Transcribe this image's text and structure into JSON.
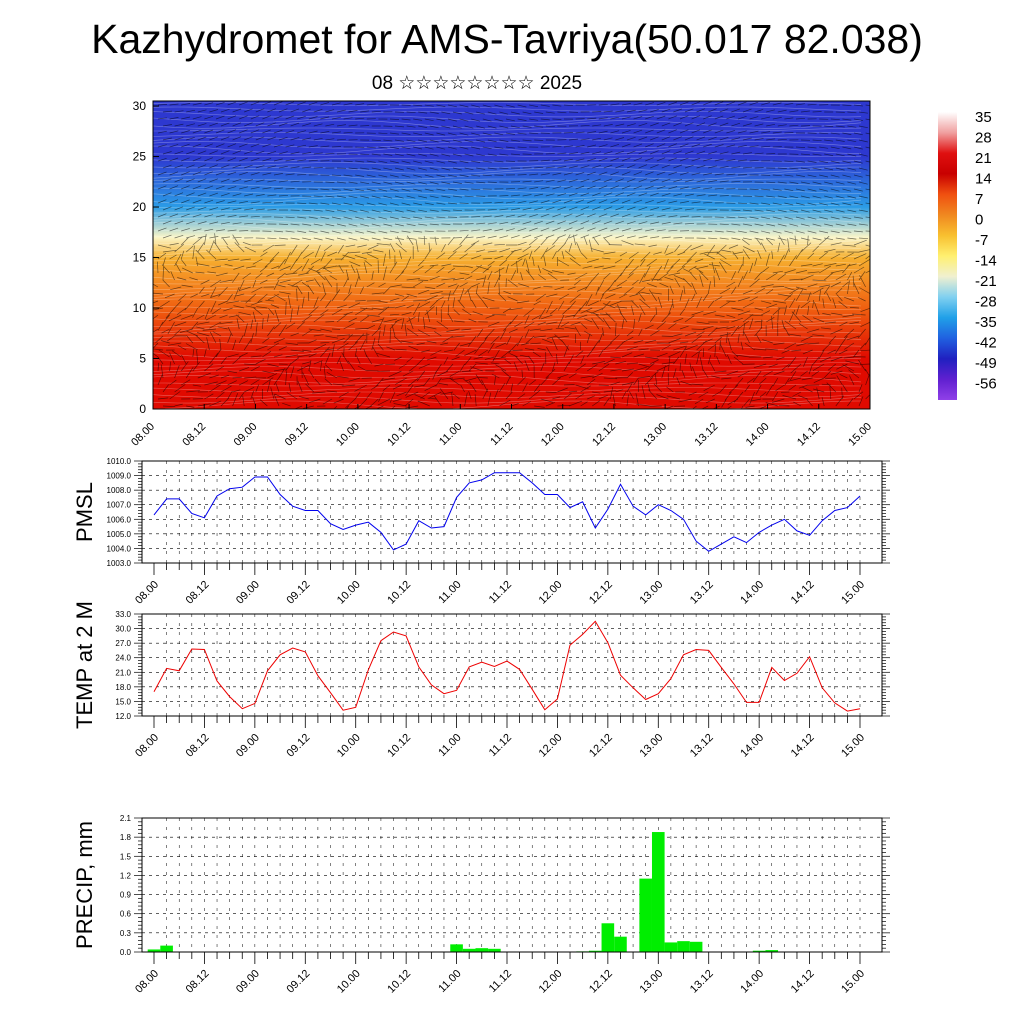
{
  "title": "Kazhydromet for AMS-Tavriya(50.017 82.038)",
  "subtitle": "08 ☆☆☆☆☆☆☆☆ 2025",
  "chart_data": [
    {
      "type": "heatmap",
      "name": "temperature-wind-section",
      "x_ticks": [
        "08.00",
        "08.12",
        "09.00",
        "09.12",
        "10.00",
        "10.12",
        "11.00",
        "11.12",
        "12.00",
        "12.12",
        "13.00",
        "13.12",
        "14.00",
        "14.12",
        "15.00"
      ],
      "y_ticks": [
        "0",
        "5",
        "10",
        "15",
        "20",
        "25",
        "30"
      ],
      "ylim": [
        0,
        30.5
      ],
      "colorbar_labels": [
        "35",
        "28",
        "21",
        "14",
        "7",
        "0",
        "-7",
        "-14",
        "-21",
        "-28",
        "-35",
        "-42",
        "-49",
        "-56"
      ],
      "colorbar_colors": [
        "#ffffff",
        "#f0a0a0",
        "#e01010",
        "#c80000",
        "#f05010",
        "#f08820",
        "#f8c030",
        "#fff070",
        "#f0f0d0",
        "#80d0f0",
        "#20a0e8",
        "#2060e0",
        "#2020c0",
        "#6020d0",
        "#9040e8"
      ],
      "levels": [
        {
          "height": 0,
          "temp": 30
        },
        {
          "height": 5,
          "temp": 24
        },
        {
          "height": 10,
          "temp": 12
        },
        {
          "height": 15,
          "temp": 0
        },
        {
          "height": 17,
          "temp": -10
        },
        {
          "height": 20,
          "temp": -30
        },
        {
          "height": 25,
          "temp": -50
        },
        {
          "height": 30.5,
          "temp": -45
        }
      ]
    },
    {
      "type": "line",
      "ylabel": "PMSL",
      "x_ticks": [
        "08.00",
        "08.12",
        "09.00",
        "09.12",
        "10.00",
        "10.12",
        "11.00",
        "11.12",
        "12.00",
        "12.12",
        "13.00",
        "13.12",
        "14.00",
        "14.12",
        "15.00"
      ],
      "y_ticks": [
        "1003.0",
        "1004.0",
        "1005.0",
        "1006.0",
        "1007.0",
        "1008.0",
        "1009.0",
        "1010.0"
      ],
      "ylim": [
        1003,
        1010
      ],
      "line_color": "#0000ee",
      "series": [
        {
          "values": [
            1006.3,
            1007.4,
            1007.4,
            1006.4,
            1006.1,
            1007.6,
            1008.1,
            1008.2,
            1008.9,
            1008.9,
            1007.7,
            1006.9,
            1006.6,
            1006.6,
            1005.7,
            1005.3,
            1005.6,
            1005.8,
            1005.1,
            1003.9,
            1004.3,
            1005.9,
            1005.4,
            1005.5,
            1007.5,
            1008.5,
            1008.7,
            1009.2,
            1009.2,
            1009.2,
            1008.5,
            1007.7,
            1007.7,
            1006.8,
            1007.2,
            1005.4,
            1006.7,
            1008.4,
            1006.9,
            1006.3,
            1007.0,
            1006.6,
            1006.0,
            1004.5,
            1003.8,
            1004.3,
            1004.8,
            1004.4,
            1005.1,
            1005.6,
            1006.0,
            1005.2,
            1004.9,
            1005.9,
            1006.6,
            1006.8,
            1007.6
          ]
        }
      ]
    },
    {
      "type": "line",
      "ylabel": "TEMP at 2 M",
      "x_ticks": [
        "08.00",
        "08.12",
        "09.00",
        "09.12",
        "10.00",
        "10.12",
        "11.00",
        "11.12",
        "12.00",
        "12.12",
        "13.00",
        "13.12",
        "14.00",
        "14.12",
        "15.00"
      ],
      "y_ticks": [
        "12.0",
        "15.0",
        "18.0",
        "21.0",
        "24.0",
        "27.0",
        "30.0",
        "33.0"
      ],
      "ylim": [
        12,
        33
      ],
      "line_color": "#ee0000",
      "series": [
        {
          "values": [
            17.0,
            21.8,
            21.3,
            25.8,
            25.7,
            19.2,
            16.0,
            13.5,
            14.6,
            21.3,
            24.6,
            26.0,
            25.2,
            20.3,
            16.8,
            13.2,
            13.8,
            21.5,
            27.5,
            29.3,
            28.5,
            22.1,
            18.4,
            16.6,
            17.3,
            22.1,
            23.1,
            22.2,
            23.3,
            21.6,
            17.5,
            13.3,
            15.5,
            26.6,
            28.8,
            31.5,
            27.1,
            20.4,
            17.8,
            15.4,
            16.6,
            19.7,
            24.6,
            25.7,
            25.5,
            22.0,
            18.6,
            14.8,
            14.8,
            22.0,
            19.3,
            20.8,
            24.2,
            17.8,
            14.7,
            13.0,
            13.5
          ]
        }
      ]
    },
    {
      "type": "bar",
      "ylabel": "PRECIP, mm",
      "x_ticks": [
        "08.00",
        "08.12",
        "09.00",
        "09.12",
        "10.00",
        "10.12",
        "11.00",
        "11.12",
        "12.00",
        "12.12",
        "13.00",
        "13.12",
        "14.00",
        "14.12",
        "15.00"
      ],
      "y_ticks": [
        "0.0",
        "0.3",
        "0.6",
        "0.9",
        "1.2",
        "1.5",
        "1.8",
        "2.1"
      ],
      "ylim": [
        0,
        2.1
      ],
      "bar_color": "#00ee00",
      "series": [
        {
          "values": [
            0.04,
            0.1,
            0,
            0,
            0,
            0,
            0,
            0,
            0,
            0,
            0,
            0,
            0,
            0,
            0,
            0,
            0,
            0,
            0,
            0,
            0,
            0,
            0,
            0,
            0.12,
            0.05,
            0.06,
            0.05,
            0,
            0,
            0,
            0,
            0,
            0,
            0.01,
            0.02,
            0.45,
            0.24,
            0,
            1.15,
            1.88,
            0.15,
            0.17,
            0.16,
            0,
            0,
            0,
            0,
            0.02,
            0.03,
            0,
            0,
            0,
            0,
            0,
            0,
            0
          ]
        }
      ]
    }
  ]
}
